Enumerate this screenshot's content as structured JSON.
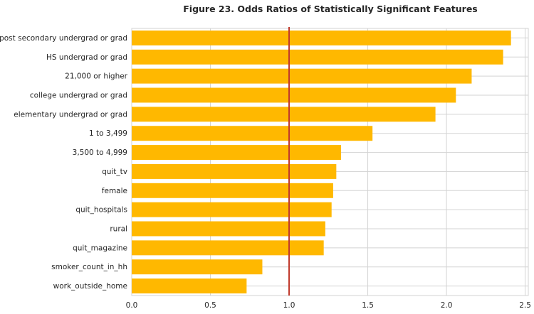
{
  "chart_data": {
    "type": "bar",
    "orientation": "horizontal",
    "title": "Figure 23. Odds Ratios of Statistically Significant Features",
    "xlabel": "",
    "ylabel": "",
    "categories": [
      "post secondary undergrad or grad",
      "HS undergrad or grad",
      "21,000 or higher",
      "college undergrad or grad",
      "elementary undergrad or grad",
      "1 to 3,499",
      "3,500 to 4,999",
      "quit_tv",
      "female",
      "quit_hospitals",
      "rural",
      "quit_magazine",
      "smoker_count_in_hh",
      "work_outside_home"
    ],
    "values": [
      2.41,
      2.36,
      2.16,
      2.06,
      1.93,
      1.53,
      1.33,
      1.3,
      1.28,
      1.27,
      1.23,
      1.22,
      0.83,
      0.73
    ],
    "xlim": [
      0,
      2.52
    ],
    "xticks": [
      "0.0",
      "0.5",
      "1.0",
      "1.5",
      "2.0",
      "2.5"
    ],
    "reference_line": 1.0,
    "grid": true,
    "colors": {
      "bar": "#FFB800",
      "reference_line": "#C0392B",
      "grid": "#d3d3d3",
      "text": "#262626"
    }
  }
}
